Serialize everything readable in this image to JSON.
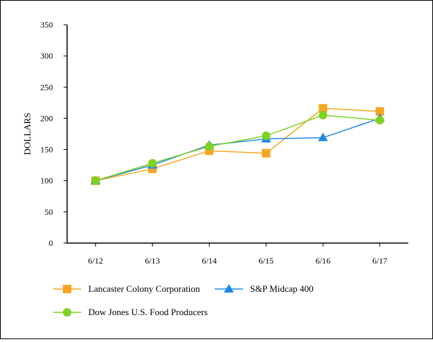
{
  "chart_data": {
    "type": "line",
    "categories": [
      "6/12",
      "6/13",
      "6/14",
      "6/15",
      "6/16",
      "6/17"
    ],
    "ylabel": "DOLLARS",
    "xlabel": "",
    "ylim": [
      0,
      350
    ],
    "yticks": [
      0,
      50,
      100,
      150,
      200,
      250,
      300,
      350
    ],
    "grid": false,
    "legend_position": "bottom",
    "series": [
      {
        "name": "Lancaster Colony Corporation",
        "values": [
          100,
          119,
          148,
          144,
          216,
          211
        ],
        "color": "#F5A623",
        "marker": "square"
      },
      {
        "name": "S&P Midcap 400",
        "values": [
          100,
          125,
          157,
          167,
          169,
          200
        ],
        "color": "#1E88E5",
        "marker": "triangle"
      },
      {
        "name": "Dow Jones U.S. Food Producers",
        "values": [
          100,
          128,
          155,
          172,
          205,
          197
        ],
        "color": "#7ED321",
        "marker": "circle"
      }
    ]
  }
}
